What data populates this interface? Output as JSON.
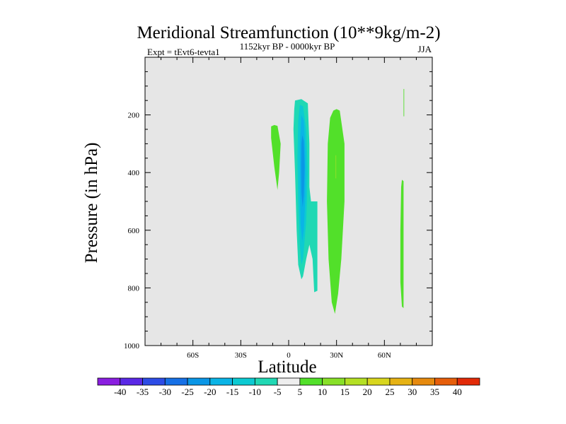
{
  "chart_data": {
    "type": "contour",
    "title": "Meridional Streamfunction (10**9kg/m-2)",
    "subtitle_left": "Expt = tEvt6-tevta1",
    "subtitle_center": "1152kyr BP - 0000kyr BP",
    "subtitle_right": "JJA",
    "xlabel": "Latitude",
    "ylabel": "Pressure (in hPa)",
    "xlim": [
      -90,
      90
    ],
    "ylim": [
      1000,
      0
    ],
    "x_ticks": [
      {
        "value": -60,
        "label": "60S"
      },
      {
        "value": -30,
        "label": "30S"
      },
      {
        "value": 0,
        "label": "0"
      },
      {
        "value": 30,
        "label": "30N"
      },
      {
        "value": 60,
        "label": "60N"
      }
    ],
    "y_ticks": [
      {
        "value": 200,
        "label": "200"
      },
      {
        "value": 400,
        "label": "400"
      },
      {
        "value": 600,
        "label": "600"
      },
      {
        "value": 800,
        "label": "800"
      },
      {
        "value": 1000,
        "label": "1000"
      }
    ],
    "background_color": "#e6e6e6",
    "colorbar": {
      "labels": [
        "-40",
        "-35",
        "-30",
        "-25",
        "-20",
        "-15",
        "-10",
        "-5",
        "5",
        "10",
        "15",
        "20",
        "25",
        "30",
        "35",
        "40"
      ],
      "colors": [
        "#8a1ee0",
        "#5a28e6",
        "#2d4ce6",
        "#1670e6",
        "#0a96e6",
        "#0ab4e6",
        "#0ccad2",
        "#20d8b4",
        "#eeeeee",
        "#52e02a",
        "#88e028",
        "#b4e024",
        "#d8d61e",
        "#e6b214",
        "#e68a0e",
        "#e65e0a",
        "#e22a08"
      ]
    },
    "regions": [
      {
        "name": "positive-cell-nh-tropics",
        "level": 5,
        "color": "#52e02a",
        "polygon": [
          [
            30,
            180
          ],
          [
            32,
            185
          ],
          [
            35,
            300
          ],
          [
            35,
            500
          ],
          [
            33,
            700
          ],
          [
            31,
            820
          ],
          [
            29,
            890
          ],
          [
            27,
            850
          ],
          [
            25,
            700
          ],
          [
            24,
            500
          ],
          [
            24.5,
            300
          ],
          [
            26,
            210
          ],
          [
            28,
            185
          ]
        ]
      },
      {
        "name": "positive-cell-sh-subtropics",
        "level": 5,
        "color": "#52e02a",
        "polygon": [
          [
            -9,
            235
          ],
          [
            -7,
            238
          ],
          [
            -5,
            300
          ],
          [
            -6,
            400
          ],
          [
            -7,
            460
          ],
          [
            -9,
            380
          ],
          [
            -11,
            280
          ],
          [
            -11,
            240
          ]
        ]
      },
      {
        "name": "positive-cell-high-latitude",
        "level": 5,
        "color": "#52e02a",
        "polygon": [
          [
            71,
            425
          ],
          [
            72,
            430
          ],
          [
            72,
            870
          ],
          [
            71,
            865
          ],
          [
            70,
            780
          ],
          [
            70,
            600
          ],
          [
            70.5,
            450
          ]
        ]
      },
      {
        "name": "positive-cell-high-latitude-top",
        "level": 5,
        "color": "#52e02a",
        "polygon": [
          [
            72,
            110
          ],
          [
            72.4,
            110
          ],
          [
            72.4,
            205
          ],
          [
            72,
            205
          ]
        ]
      },
      {
        "name": "positive-cell-high-latitude-mid",
        "level": 5,
        "color": "#52e02a",
        "polygon": [
          [
            70.3,
            580
          ],
          [
            71.3,
            580
          ],
          [
            71.3,
            700
          ],
          [
            70.3,
            700
          ]
        ]
      },
      {
        "name": "negative-cell-equatorial-outer",
        "level": -5,
        "color": "#20d8b4",
        "polygon": [
          [
            4,
            150
          ],
          [
            8,
            145
          ],
          [
            12,
            160
          ],
          [
            13,
            300
          ],
          [
            13,
            450
          ],
          [
            14,
            500
          ],
          [
            18,
            500
          ],
          [
            18,
            810
          ],
          [
            16,
            815
          ],
          [
            15,
            700
          ],
          [
            13,
            650
          ],
          [
            11,
            700
          ],
          [
            9,
            760
          ],
          [
            8,
            770
          ],
          [
            6,
            720
          ],
          [
            5,
            600
          ],
          [
            4,
            400
          ],
          [
            3,
            250
          ],
          [
            3.5,
            180
          ]
        ]
      },
      {
        "name": "negative-cell-equatorial-mid",
        "level": -10,
        "color": "#0ccad2",
        "polygon": [
          [
            7,
            165
          ],
          [
            9,
            170
          ],
          [
            11,
            250
          ],
          [
            12,
            400
          ],
          [
            11,
            570
          ],
          [
            9,
            700
          ],
          [
            8,
            720
          ],
          [
            7,
            650
          ],
          [
            6,
            500
          ],
          [
            5.5,
            350
          ],
          [
            6,
            220
          ]
        ]
      },
      {
        "name": "negative-cell-equatorial-inner",
        "level": -15,
        "color": "#0ab4e6",
        "polygon": [
          [
            8,
            200
          ],
          [
            9.5,
            220
          ],
          [
            10.5,
            330
          ],
          [
            10.5,
            480
          ],
          [
            9.5,
            600
          ],
          [
            8.5,
            640
          ],
          [
            7.5,
            580
          ],
          [
            7,
            450
          ],
          [
            7,
            300
          ]
        ]
      },
      {
        "name": "negative-cell-equatorial-core",
        "level": -20,
        "color": "#0a96e6",
        "polygon": [
          [
            8.5,
            270
          ],
          [
            9.5,
            290
          ],
          [
            10,
            380
          ],
          [
            9.5,
            480
          ],
          [
            8.8,
            520
          ],
          [
            8,
            470
          ],
          [
            7.8,
            380
          ],
          [
            8,
            300
          ]
        ]
      },
      {
        "name": "positive-cell-nh-inner",
        "level": 10,
        "color": "#88e028",
        "polygon": [
          [
            29.3,
            340
          ],
          [
            29.8,
            340
          ],
          [
            29.8,
            420
          ],
          [
            29.3,
            420
          ]
        ]
      }
    ]
  }
}
